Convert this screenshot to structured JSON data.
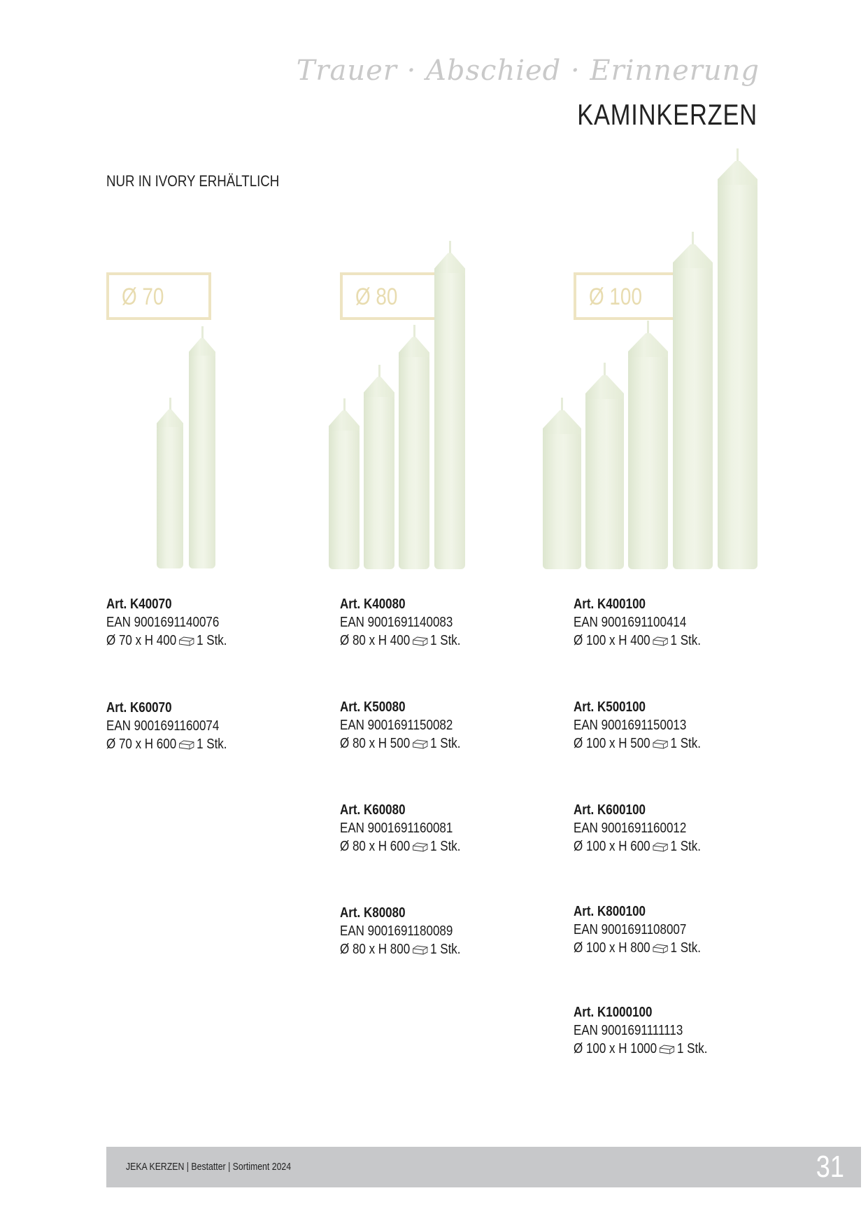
{
  "header": {
    "script_title": "Trauer · Abschied · Erinnerung",
    "title": "KAMINKERZEN"
  },
  "note": "NUR IN IVORY ERHÄLTLICH",
  "groups": [
    {
      "diameter_label": "Ø 70",
      "items": [
        {
          "art": "Art. K40070",
          "ean": "EAN 9001691140076",
          "size": "Ø 70 x H 400",
          "qty": "1 Stk."
        },
        {
          "art": "Art. K60070",
          "ean": "EAN 9001691160074",
          "size": "Ø 70 x H 600",
          "qty": "1 Stk."
        }
      ]
    },
    {
      "diameter_label": "Ø 80",
      "items": [
        {
          "art": "Art. K40080",
          "ean": "EAN 9001691140083",
          "size": "Ø 80 x H 400",
          "qty": "1 Stk."
        },
        {
          "art": "Art. K50080",
          "ean": "EAN 9001691150082",
          "size": "Ø 80 x H 500",
          "qty": "1 Stk."
        },
        {
          "art": "Art. K60080",
          "ean": "EAN 9001691160081",
          "size": "Ø 80 x H 600",
          "qty": "1 Stk."
        },
        {
          "art": "Art. K80080",
          "ean": "EAN 9001691180089",
          "size": "Ø 80 x H 800",
          "qty": "1 Stk."
        }
      ]
    },
    {
      "diameter_label": "Ø 100",
      "items": [
        {
          "art": "Art. K400100",
          "ean": "EAN 9001691100414",
          "size": "Ø 100 x H 400",
          "qty": "1 Stk."
        },
        {
          "art": "Art. K500100",
          "ean": "EAN 9001691150013",
          "size": "Ø 100 x H 500",
          "qty": "1 Stk."
        },
        {
          "art": "Art. K600100",
          "ean": "EAN 9001691160012",
          "size": "Ø 100 x H 600",
          "qty": "1 Stk."
        },
        {
          "art": "Art. K800100",
          "ean": "EAN 9001691108007",
          "size": "Ø 100 x H 800",
          "qty": "1 Stk."
        },
        {
          "art": "Art. K1000100",
          "ean": "EAN 9001691111113",
          "size": "Ø 100 x H 1000",
          "qty": "1 Stk."
        }
      ]
    }
  ],
  "footer": {
    "text": "JEKA KERZEN | Bestatter | Sortiment 2024",
    "page_number": "31"
  },
  "colors": {
    "candle_ivory": "#eef3e4",
    "label_box": "#eee4c2",
    "footer_bar": "#c7c8ca"
  }
}
